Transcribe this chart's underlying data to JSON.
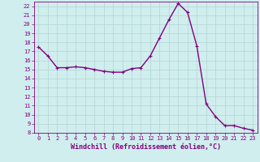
{
  "x": [
    0,
    1,
    2,
    3,
    4,
    5,
    6,
    7,
    8,
    9,
    10,
    11,
    12,
    13,
    14,
    15,
    16,
    17,
    18,
    19,
    20,
    21,
    22,
    23
  ],
  "y": [
    17.5,
    16.5,
    15.2,
    15.2,
    15.3,
    15.2,
    15.0,
    14.8,
    14.7,
    14.7,
    15.1,
    15.2,
    16.5,
    18.5,
    20.5,
    22.3,
    21.3,
    17.6,
    11.2,
    9.8,
    8.8,
    8.8,
    8.5,
    8.3
  ],
  "line_color": "#800080",
  "marker": "+",
  "xlabel": "Windchill (Refroidissement éolien,°C)",
  "ylabel": "",
  "ylim": [
    8,
    22.5
  ],
  "xlim": [
    -0.5,
    23.5
  ],
  "yticks": [
    8,
    9,
    10,
    11,
    12,
    13,
    14,
    15,
    16,
    17,
    18,
    19,
    20,
    21,
    22
  ],
  "xticks": [
    0,
    1,
    2,
    3,
    4,
    5,
    6,
    7,
    8,
    9,
    10,
    11,
    12,
    13,
    14,
    15,
    16,
    17,
    18,
    19,
    20,
    21,
    22,
    23
  ],
  "bg_color": "#d0eeee",
  "grid_color": "#b8d8d8",
  "line_width": 1.0,
  "marker_size": 3,
  "tick_color": "#800080",
  "tick_fontsize": 5.0,
  "xlabel_fontsize": 6.0,
  "spine_color": "#800080"
}
